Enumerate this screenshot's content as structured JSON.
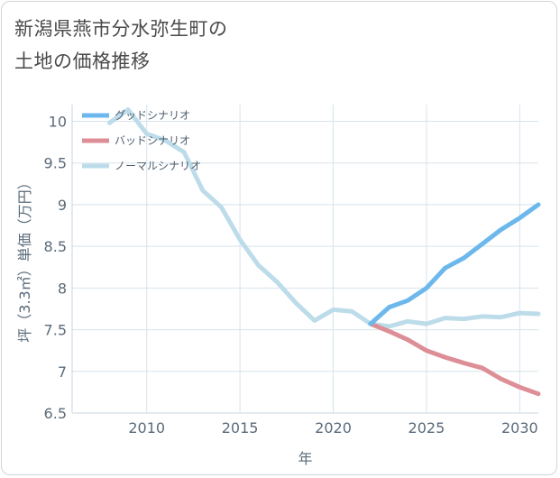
{
  "title_lines": [
    "新潟県燕市分水弥生町の",
    "土地の価格推移"
  ],
  "chart_data": {
    "type": "line",
    "title": "新潟県燕市分水弥生町の土地の価格推移",
    "xlabel": "年",
    "ylabel": "坪（3.3㎡）単価（万円）",
    "xlim": [
      2006,
      2031
    ],
    "ylim": [
      6.5,
      10.2
    ],
    "xticks": [
      2010,
      2015,
      2020,
      2025,
      2030
    ],
    "yticks": [
      6.5,
      7,
      7.5,
      8,
      8.5,
      9,
      9.5,
      10
    ],
    "xtick_labels": [
      "2010",
      "2015",
      "2020",
      "2025",
      "2030"
    ],
    "ytick_labels": [
      "6.5",
      "7",
      "7.5",
      "8",
      "8.5",
      "9",
      "9.5",
      "10"
    ],
    "grid": true,
    "legend_position": "top-left",
    "series": [
      {
        "name": "グッドシナリオ",
        "color": "#6cb8ec",
        "x": [
          2022,
          2023,
          2024,
          2025,
          2026,
          2027,
          2028,
          2029,
          2030,
          2031
        ],
        "y": [
          7.57,
          7.77,
          7.85,
          8.0,
          8.24,
          8.36,
          8.53,
          8.7,
          8.84,
          9.0
        ]
      },
      {
        "name": "バッドシナリオ",
        "color": "#dd8e96",
        "x": [
          2022,
          2023,
          2024,
          2025,
          2026,
          2027,
          2028,
          2029,
          2030,
          2031
        ],
        "y": [
          7.57,
          7.48,
          7.38,
          7.25,
          7.17,
          7.1,
          7.04,
          6.91,
          6.81,
          6.73
        ]
      },
      {
        "name": "ノーマルシナリオ",
        "color": "#bddcea",
        "x": [
          2008,
          2009,
          2010,
          2011,
          2012,
          2013,
          2014,
          2015,
          2016,
          2017,
          2018,
          2019,
          2020,
          2021,
          2022,
          2023,
          2024,
          2025,
          2026,
          2027,
          2028,
          2029,
          2030,
          2031
        ],
        "y": [
          9.98,
          10.14,
          9.85,
          9.77,
          9.63,
          9.17,
          8.97,
          8.58,
          8.27,
          8.07,
          7.82,
          7.61,
          7.74,
          7.72,
          7.57,
          7.54,
          7.6,
          7.57,
          7.64,
          7.63,
          7.66,
          7.65,
          7.7,
          7.69
        ]
      }
    ]
  }
}
